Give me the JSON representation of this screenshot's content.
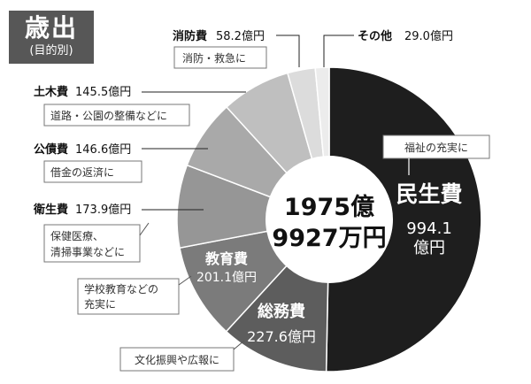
{
  "title": {
    "main": "歳出",
    "sub": "(目的別)"
  },
  "center": {
    "line1": "1975億",
    "line2": "9927万円"
  },
  "colors": {
    "minsei": "#1e1e1e",
    "somu": "#5d5d5d",
    "kyoiku": "#7b7b7b",
    "eisei": "#969696",
    "kosai": "#a9a9a9",
    "doboku": "#bfbfbf",
    "shobo": "#dcdcdc",
    "other": "#ececec",
    "title_bg": "#575757"
  },
  "chart_data": {
    "type": "pie",
    "title": "歳出",
    "subtitle": "(目的別)",
    "total": "1975億9927万円",
    "unit": "億円",
    "slices": [
      {
        "key": "minsei",
        "label": "民生費",
        "value": 994.1,
        "value_text": "994.1",
        "unit_text": "億円",
        "note": "福祉の充実に"
      },
      {
        "key": "somu",
        "label": "総務費",
        "value": 227.6,
        "value_text": "227.6億円",
        "note": "文化振興や広報に"
      },
      {
        "key": "kyoiku",
        "label": "教育費",
        "value": 201.1,
        "value_text": "201.1億円",
        "note_line1": "学校教育などの",
        "note_line2": "充実に"
      },
      {
        "key": "eisei",
        "label": "衛生費",
        "value": 173.9,
        "value_text": "173.9億円",
        "note_line1": "保健医療、",
        "note_line2": "清掃事業などに"
      },
      {
        "key": "kosai",
        "label": "公債費",
        "value": 146.6,
        "value_text": "146.6億円",
        "note": "借金の返済に"
      },
      {
        "key": "doboku",
        "label": "土木費",
        "value": 145.5,
        "value_text": "145.5億円",
        "note": "道路・公園の整備などに"
      },
      {
        "key": "shobo",
        "label": "消防費",
        "value": 58.2,
        "value_text": "58.2億円",
        "note": "消防・救急に"
      },
      {
        "key": "other",
        "label": "その他",
        "value": 29.0,
        "value_text": "29.0億円"
      }
    ]
  }
}
